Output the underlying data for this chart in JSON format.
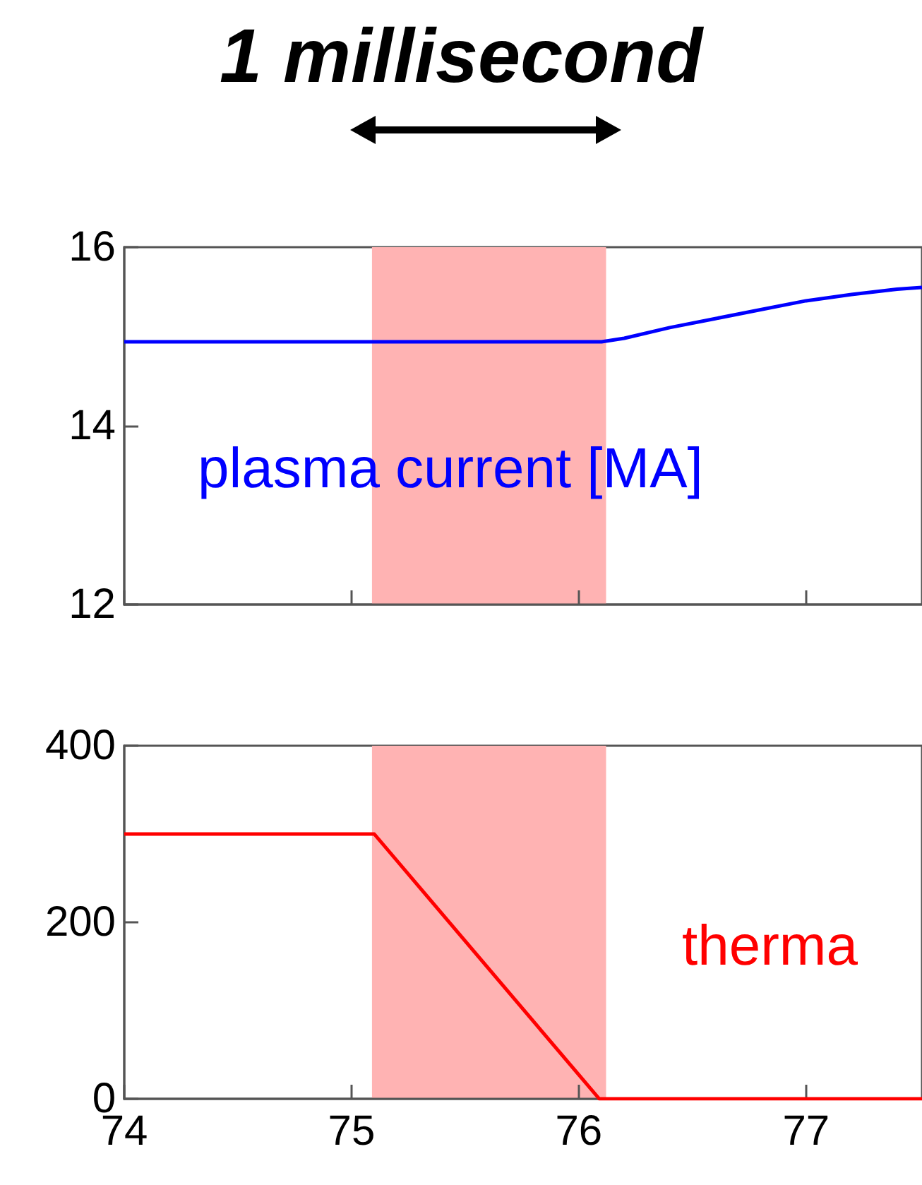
{
  "chart_data": [
    {
      "type": "line",
      "title": "1 millisecond",
      "x": [
        74,
        76.1,
        76.2,
        76.4,
        76.6,
        76.8,
        77.0,
        77.2,
        77.4,
        77.51
      ],
      "series": [
        {
          "name": "plasma current [MA]",
          "color": "#0000ff",
          "values": [
            14.94,
            14.94,
            14.98,
            15.1,
            15.2,
            15.3,
            15.4,
            15.47,
            15.53,
            15.55
          ]
        }
      ],
      "xlim": [
        74,
        77.51
      ],
      "xticks": [
        74,
        75,
        76,
        77
      ],
      "ylim": [
        12,
        16
      ],
      "yticks": [
        12,
        14,
        16
      ],
      "tick_labels": "y",
      "grid": false,
      "legend": false,
      "bands": [
        {
          "axis": "x",
          "from": 75.09,
          "to": 76.12,
          "color": "#ffb3b3"
        }
      ]
    },
    {
      "type": "line",
      "x": [
        74,
        75.1,
        76.09,
        77.51
      ],
      "series": [
        {
          "name": "therma",
          "color": "#ff0000",
          "values": [
            300,
            300,
            0,
            0
          ]
        }
      ],
      "xlim": [
        74,
        77.51
      ],
      "xticks": [
        74,
        75,
        76,
        77
      ],
      "ylim": [
        0,
        400
      ],
      "yticks": [
        0,
        200,
        400
      ],
      "grid": false,
      "legend": false,
      "bands": [
        {
          "axis": "x",
          "from": 75.09,
          "to": 76.12,
          "color": "#ffb3b3"
        }
      ]
    }
  ]
}
